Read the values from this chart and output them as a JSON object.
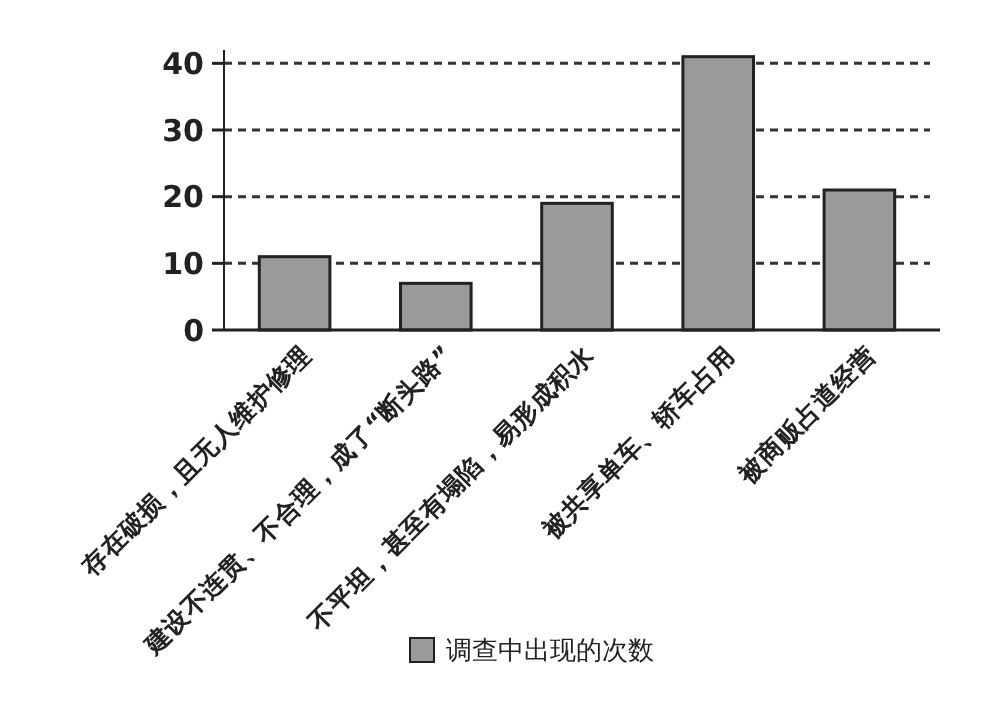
{
  "chart_data": {
    "type": "bar",
    "categories": [
      "存在破损，且无人维护修理",
      "建设不连贯、不合理，成了“断头路”",
      "不平坦，甚至有塌陷，易形成积水",
      "被共享单车、轿车占用",
      "被商贩占道经营"
    ],
    "series": [
      {
        "name": "调查中出现的次数",
        "color": "#9a9a9a",
        "values": [
          11,
          7,
          19,
          41,
          21
        ]
      }
    ],
    "ylim": [
      0,
      42
    ],
    "yticks": [
      0,
      10,
      20,
      30,
      40
    ],
    "grid": "y",
    "line_style": "dashed",
    "legend": "bottom"
  }
}
